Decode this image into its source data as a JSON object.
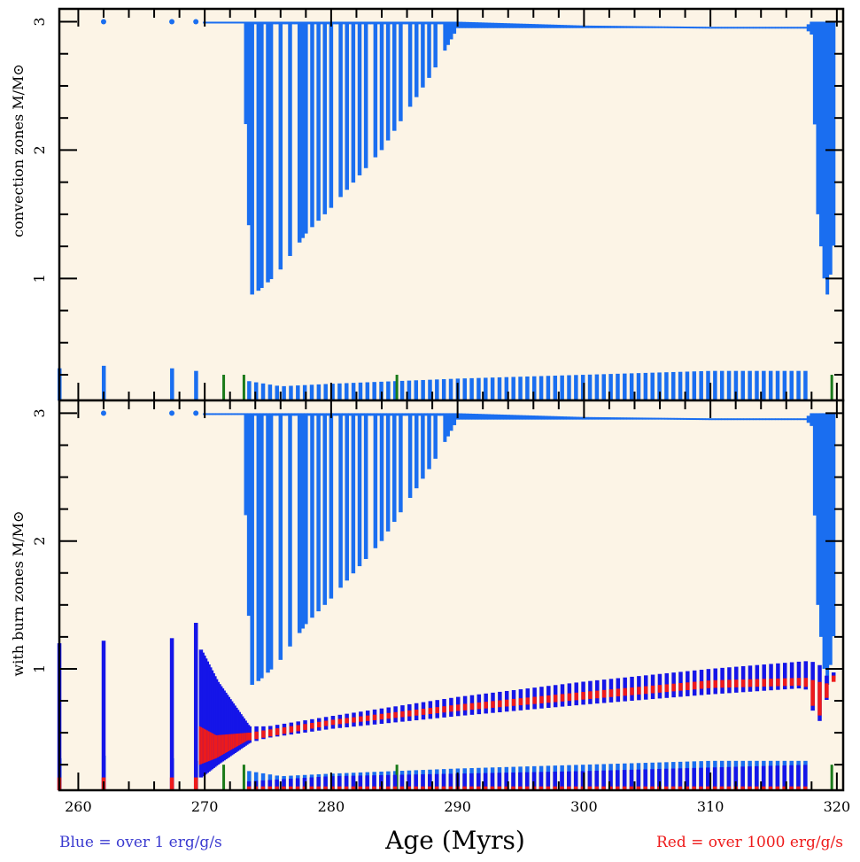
{
  "chart_data": [
    {
      "type": "area",
      "ylabel": "convection zones M/M⊙",
      "xlim": [
        258.5,
        320.5
      ],
      "ylim": [
        0.05,
        3.1
      ],
      "yticks": [
        "1",
        "2",
        "3"
      ],
      "background": "#fcf4e6",
      "colors": {
        "convection": "#1a6ef0",
        "minor": "#1a7a1a"
      },
      "series": [
        {
          "x": [
            270,
            273,
            273.6,
            273.8,
            274.2,
            275,
            276,
            278,
            280,
            284,
            288,
            290,
            300,
            310,
            317.5,
            318,
            318.5,
            319,
            319.3,
            319.8
          ],
          "bottom": [
            2.99,
            2.99,
            1.1,
            0.8,
            0.9,
            0.97,
            1.07,
            1.35,
            1.55,
            2.0,
            2.6,
            2.95,
            2.95,
            2.95,
            2.95,
            2.9,
            1.5,
            1.0,
            0.85,
            1.3
          ],
          "top": [
            3.0,
            3.0,
            3.0,
            3.0,
            3.0,
            3.0,
            3.0,
            3.0,
            3.0,
            3.0,
            3.0,
            3.0,
            2.97,
            2.96,
            2.96,
            3.0,
            3.0,
            3.0,
            3.0,
            3.0
          ]
        },
        {
          "x": [
            258.5,
            262,
            267.4,
            269.3,
            273.5,
            276,
            280,
            290,
            300,
            310,
            317.8
          ],
          "bottom": [
            0.05,
            0.05,
            0.05,
            0.05,
            0.05,
            0.05,
            0.05,
            0.05,
            0.05,
            0.05,
            0.05
          ],
          "top": [
            0.3,
            0.32,
            0.3,
            0.28,
            0.2,
            0.16,
            0.18,
            0.22,
            0.25,
            0.28,
            0.28
          ]
        }
      ]
    },
    {
      "type": "area",
      "ylabel": "with burn zones M/M⊙",
      "xlabel": "Age (Myrs)",
      "xlim": [
        258.5,
        320.5
      ],
      "xticks": [
        "260",
        "270",
        "280",
        "290",
        "300",
        "310",
        "320"
      ],
      "ylim": [
        0.05,
        3.1
      ],
      "yticks": [
        "1",
        "2",
        "3"
      ],
      "background": "#fcf4e6",
      "colors": {
        "convection": "#1a6ef0",
        "blue_burn": "#1515e8",
        "red_burn": "#ee1b1b",
        "minor": "#1a7a1a"
      },
      "blue_burn_band": {
        "x": [
          269.7,
          271,
          273.5,
          275,
          280,
          290,
          300,
          310,
          317.5,
          318.5,
          319.5,
          320
        ],
        "bottom": [
          0.15,
          0.25,
          0.42,
          0.46,
          0.53,
          0.63,
          0.72,
          0.8,
          0.85,
          0.55,
          0.85,
          1.0
        ],
        "top": [
          1.15,
          0.9,
          0.55,
          0.55,
          0.63,
          0.78,
          0.9,
          1.0,
          1.06,
          1.05,
          0.9,
          1.05
        ]
      },
      "red_burn_band": {
        "x": [
          269.7,
          271,
          273.5,
          280,
          290,
          300,
          310,
          317.5,
          318.5,
          319.5,
          320
        ],
        "bottom": [
          0.25,
          0.3,
          0.44,
          0.56,
          0.67,
          0.76,
          0.85,
          0.87,
          0.6,
          0.85,
          0.95
        ],
        "top": [
          0.55,
          0.48,
          0.5,
          0.6,
          0.72,
          0.82,
          0.91,
          0.93,
          0.9,
          0.88,
          1.02
        ]
      }
    }
  ],
  "legend": {
    "blue": "Blue = over 1 erg/g/s",
    "red": "Red = over 1000 erg/g/s"
  }
}
